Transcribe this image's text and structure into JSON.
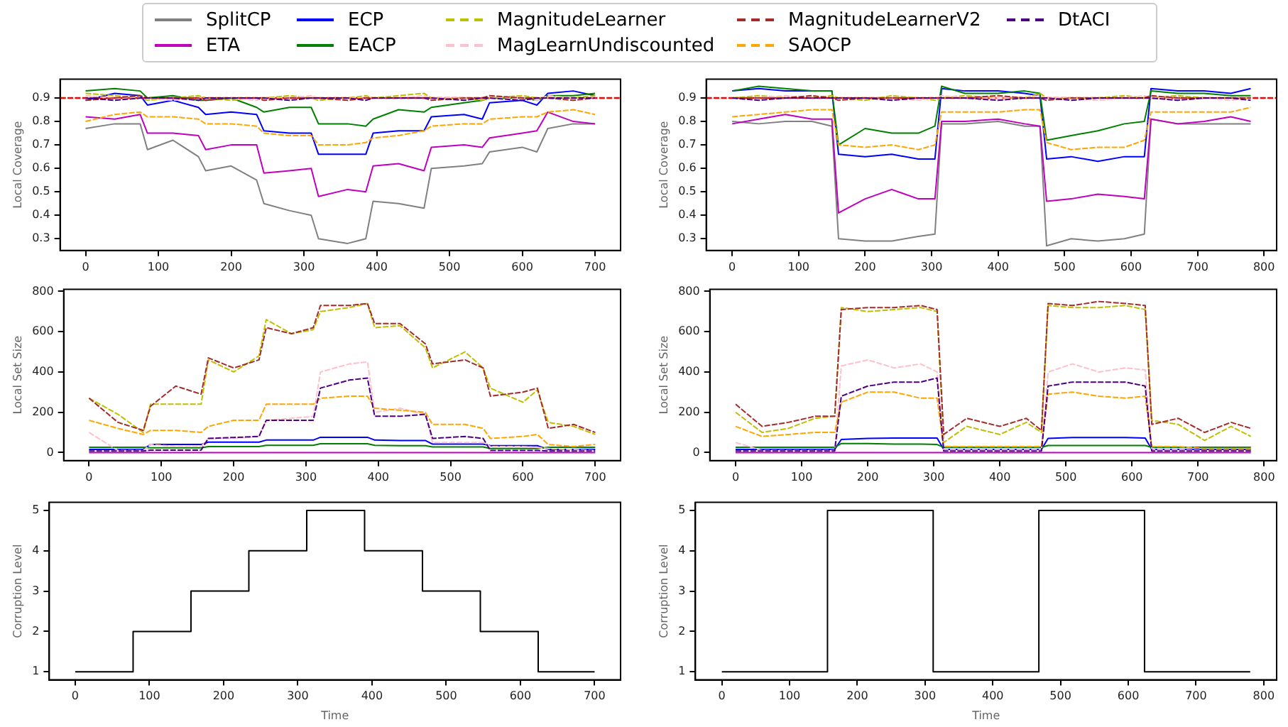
{
  "chart_data": [
    {
      "type": "line",
      "ylabel": "Local Coverage",
      "legend": "top",
      "xlim": [
        -35,
        735
      ],
      "xticks": [
        0,
        100,
        200,
        300,
        400,
        500,
        600,
        700
      ],
      "ylim": [
        0.25,
        0.98
      ],
      "yticks": [
        0.3,
        0.4,
        0.5,
        0.6,
        0.7,
        0.8,
        0.9
      ],
      "x": [
        0,
        40,
        75,
        85,
        120,
        155,
        165,
        200,
        235,
        245,
        280,
        310,
        320,
        360,
        385,
        395,
        430,
        465,
        475,
        520,
        545,
        555,
        600,
        620,
        635,
        670,
        700
      ],
      "ref_lines": [
        {
          "axis": "y",
          "value": 0.9,
          "color": "#ff0000",
          "line_style": "dashed"
        }
      ],
      "series": [
        {
          "name": "SplitCP",
          "color": "#808080",
          "values": [
            0.77,
            0.79,
            0.79,
            0.68,
            0.72,
            0.65,
            0.59,
            0.61,
            0.55,
            0.45,
            0.42,
            0.4,
            0.3,
            0.28,
            0.3,
            0.46,
            0.45,
            0.43,
            0.6,
            0.61,
            0.62,
            0.67,
            0.69,
            0.67,
            0.77,
            0.79,
            0.79
          ]
        },
        {
          "name": "ETA",
          "color": "#bf00bf",
          "values": [
            0.82,
            0.81,
            0.83,
            0.75,
            0.75,
            0.74,
            0.68,
            0.7,
            0.7,
            0.58,
            0.59,
            0.6,
            0.48,
            0.51,
            0.5,
            0.61,
            0.62,
            0.59,
            0.69,
            0.7,
            0.69,
            0.73,
            0.75,
            0.76,
            0.84,
            0.8,
            0.79
          ]
        },
        {
          "name": "ECP",
          "color": "#0000ff",
          "values": [
            0.89,
            0.92,
            0.91,
            0.87,
            0.89,
            0.86,
            0.83,
            0.84,
            0.83,
            0.76,
            0.75,
            0.75,
            0.66,
            0.66,
            0.66,
            0.75,
            0.76,
            0.76,
            0.82,
            0.83,
            0.81,
            0.88,
            0.89,
            0.87,
            0.92,
            0.93,
            0.91
          ]
        },
        {
          "name": "EACP",
          "color": "#008000",
          "values": [
            0.93,
            0.94,
            0.93,
            0.9,
            0.91,
            0.89,
            0.89,
            0.9,
            0.86,
            0.84,
            0.86,
            0.86,
            0.79,
            0.79,
            0.78,
            0.81,
            0.85,
            0.84,
            0.86,
            0.88,
            0.89,
            0.9,
            0.9,
            0.89,
            0.91,
            0.91,
            0.92
          ]
        },
        {
          "name": "MagnitudeLearner",
          "color": "#bfbf00",
          "line_style": "dashed",
          "values": [
            0.92,
            0.91,
            0.9,
            0.89,
            0.9,
            0.91,
            0.9,
            0.89,
            0.9,
            0.9,
            0.91,
            0.9,
            0.89,
            0.9,
            0.91,
            0.9,
            0.91,
            0.92,
            0.9,
            0.9,
            0.89,
            0.9,
            0.91,
            0.9,
            0.9,
            0.9,
            0.91
          ]
        },
        {
          "name": "MagLearnUndiscounted",
          "color": "#ffc0cb",
          "line_style": "dashed",
          "values": [
            0.91,
            0.9,
            0.9,
            0.9,
            0.89,
            0.9,
            0.9,
            0.9,
            0.89,
            0.9,
            0.9,
            0.91,
            0.9,
            0.9,
            0.9,
            0.9,
            0.9,
            0.91,
            0.9,
            0.9,
            0.9,
            0.9,
            0.9,
            0.89,
            0.91,
            0.9,
            0.9
          ]
        },
        {
          "name": "MagnitudeLearnerV2",
          "color": "#a52a2a",
          "line_style": "dashed",
          "values": [
            0.89,
            0.9,
            0.91,
            0.9,
            0.9,
            0.9,
            0.89,
            0.9,
            0.9,
            0.89,
            0.9,
            0.9,
            0.9,
            0.89,
            0.9,
            0.9,
            0.9,
            0.9,
            0.89,
            0.9,
            0.9,
            0.91,
            0.9,
            0.9,
            0.9,
            0.89,
            0.9
          ]
        },
        {
          "name": "SAOCP",
          "color": "#ffa500",
          "line_style": "dashed",
          "values": [
            0.8,
            0.83,
            0.84,
            0.82,
            0.82,
            0.81,
            0.79,
            0.79,
            0.78,
            0.75,
            0.74,
            0.74,
            0.7,
            0.7,
            0.71,
            0.73,
            0.74,
            0.76,
            0.78,
            0.79,
            0.79,
            0.81,
            0.82,
            0.82,
            0.84,
            0.85,
            0.83
          ]
        },
        {
          "name": "DtACI",
          "color": "#4b0082",
          "line_style": "dashed",
          "values": [
            0.9,
            0.89,
            0.9,
            0.9,
            0.9,
            0.89,
            0.9,
            0.9,
            0.9,
            0.9,
            0.89,
            0.9,
            0.9,
            0.9,
            0.89,
            0.9,
            0.9,
            0.9,
            0.9,
            0.89,
            0.9,
            0.9,
            0.89,
            0.9,
            0.9,
            0.9,
            0.9
          ]
        }
      ]
    },
    {
      "type": "line",
      "ylabel": "Local Coverage",
      "xlim": [
        -39,
        819
      ],
      "xticks": [
        0,
        100,
        200,
        300,
        400,
        500,
        600,
        700,
        800
      ],
      "ylim": [
        0.25,
        0.98
      ],
      "yticks": [
        0.3,
        0.4,
        0.5,
        0.6,
        0.7,
        0.8,
        0.9
      ],
      "x": [
        0,
        40,
        80,
        120,
        150,
        160,
        200,
        240,
        280,
        305,
        315,
        350,
        400,
        440,
        463,
        473,
        510,
        550,
        590,
        620,
        630,
        670,
        710,
        750,
        780
      ],
      "ref_lines": [
        {
          "axis": "y",
          "value": 0.9,
          "color": "#ff0000",
          "line_style": "dashed"
        }
      ],
      "series": [
        {
          "name": "SplitCP",
          "color": "#808080",
          "values": [
            0.8,
            0.79,
            0.8,
            0.8,
            0.78,
            0.3,
            0.29,
            0.29,
            0.31,
            0.32,
            0.79,
            0.79,
            0.8,
            0.78,
            0.78,
            0.27,
            0.3,
            0.29,
            0.3,
            0.32,
            0.81,
            0.79,
            0.79,
            0.79,
            0.79
          ]
        },
        {
          "name": "ETA",
          "color": "#bf00bf",
          "values": [
            0.79,
            0.81,
            0.83,
            0.81,
            0.81,
            0.41,
            0.47,
            0.51,
            0.47,
            0.47,
            0.8,
            0.8,
            0.81,
            0.79,
            0.78,
            0.46,
            0.47,
            0.49,
            0.48,
            0.47,
            0.81,
            0.79,
            0.8,
            0.82,
            0.8
          ]
        },
        {
          "name": "ECP",
          "color": "#0000ff",
          "values": [
            0.93,
            0.94,
            0.93,
            0.93,
            0.93,
            0.66,
            0.65,
            0.66,
            0.64,
            0.64,
            0.94,
            0.93,
            0.93,
            0.92,
            0.91,
            0.64,
            0.65,
            0.63,
            0.65,
            0.65,
            0.94,
            0.93,
            0.93,
            0.92,
            0.94
          ]
        },
        {
          "name": "EACP",
          "color": "#008000",
          "values": [
            0.93,
            0.95,
            0.94,
            0.93,
            0.93,
            0.7,
            0.77,
            0.75,
            0.75,
            0.78,
            0.95,
            0.92,
            0.92,
            0.93,
            0.92,
            0.72,
            0.74,
            0.76,
            0.79,
            0.8,
            0.93,
            0.92,
            0.92,
            0.91,
            0.91
          ]
        },
        {
          "name": "MagnitudeLearner",
          "color": "#bfbf00",
          "line_style": "dashed",
          "values": [
            0.9,
            0.91,
            0.9,
            0.9,
            0.91,
            0.9,
            0.89,
            0.91,
            0.9,
            0.89,
            0.9,
            0.91,
            0.9,
            0.9,
            0.92,
            0.9,
            0.9,
            0.9,
            0.91,
            0.9,
            0.9,
            0.91,
            0.9,
            0.9,
            0.9
          ]
        },
        {
          "name": "MagLearnUndiscounted",
          "color": "#ffc0cb",
          "line_style": "dashed",
          "values": [
            0.9,
            0.9,
            0.91,
            0.9,
            0.9,
            0.9,
            0.9,
            0.9,
            0.89,
            0.9,
            0.91,
            0.9,
            0.9,
            0.9,
            0.91,
            0.9,
            0.9,
            0.89,
            0.9,
            0.91,
            0.9,
            0.9,
            0.9,
            0.89,
            0.9
          ]
        },
        {
          "name": "MagnitudeLearnerV2",
          "color": "#a52a2a",
          "line_style": "dashed",
          "values": [
            0.9,
            0.9,
            0.9,
            0.91,
            0.9,
            0.89,
            0.9,
            0.9,
            0.9,
            0.9,
            0.9,
            0.9,
            0.91,
            0.9,
            0.9,
            0.89,
            0.9,
            0.9,
            0.9,
            0.9,
            0.91,
            0.9,
            0.9,
            0.9,
            0.9
          ]
        },
        {
          "name": "SAOCP",
          "color": "#ffa500",
          "line_style": "dashed",
          "values": [
            0.82,
            0.83,
            0.84,
            0.85,
            0.85,
            0.7,
            0.69,
            0.7,
            0.68,
            0.7,
            0.84,
            0.84,
            0.84,
            0.85,
            0.85,
            0.71,
            0.68,
            0.69,
            0.69,
            0.72,
            0.84,
            0.84,
            0.84,
            0.84,
            0.86
          ]
        },
        {
          "name": "DtACI",
          "color": "#4b0082",
          "line_style": "dashed",
          "values": [
            0.9,
            0.89,
            0.9,
            0.9,
            0.9,
            0.9,
            0.9,
            0.89,
            0.9,
            0.9,
            0.9,
            0.9,
            0.89,
            0.9,
            0.9,
            0.9,
            0.89,
            0.9,
            0.9,
            0.9,
            0.9,
            0.89,
            0.9,
            0.9,
            0.89
          ]
        }
      ]
    },
    {
      "type": "line",
      "ylabel": "Local Set Size",
      "xlim": [
        -35,
        735
      ],
      "xticks": [
        0,
        100,
        200,
        300,
        400,
        500,
        600,
        700
      ],
      "ylim": [
        -40,
        810
      ],
      "yticks": [
        0,
        200,
        400,
        600,
        800
      ],
      "x": [
        0,
        40,
        75,
        85,
        120,
        155,
        165,
        200,
        235,
        245,
        280,
        310,
        320,
        360,
        385,
        395,
        430,
        465,
        475,
        520,
        545,
        555,
        600,
        620,
        635,
        670,
        700
      ],
      "series": [
        {
          "name": "SplitCP",
          "color": "#808080",
          "values": [
            null,
            null,
            null,
            null,
            null,
            null,
            null,
            null,
            null,
            null,
            null,
            null,
            null,
            null,
            null,
            null,
            null,
            null,
            null,
            null,
            null,
            null,
            null,
            null,
            null,
            null,
            null
          ]
        },
        {
          "name": "ETA",
          "color": "#bf00bf",
          "values": [
            0,
            0,
            0,
            0,
            0,
            0,
            0,
            0,
            0,
            0,
            0,
            0,
            0,
            0,
            0,
            0,
            0,
            0,
            0,
            0,
            0,
            0,
            0,
            0,
            0,
            0,
            0
          ]
        },
        {
          "name": "ECP",
          "color": "#0000ff",
          "values": [
            16,
            16,
            16,
            40,
            40,
            40,
            52,
            52,
            52,
            62,
            62,
            62,
            76,
            76,
            76,
            62,
            60,
            60,
            42,
            42,
            42,
            34,
            34,
            34,
            16,
            16,
            16
          ]
        },
        {
          "name": "EACP",
          "color": "#008000",
          "values": [
            26,
            26,
            26,
            24,
            24,
            24,
            30,
            30,
            30,
            36,
            36,
            36,
            44,
            44,
            44,
            36,
            34,
            34,
            28,
            28,
            28,
            20,
            20,
            20,
            26,
            26,
            26
          ]
        },
        {
          "name": "MagnitudeLearner",
          "color": "#bfbf00",
          "line_style": "dashed",
          "values": [
            270,
            190,
            100,
            240,
            240,
            240,
            460,
            400,
            480,
            660,
            590,
            610,
            700,
            720,
            740,
            620,
            630,
            520,
            420,
            500,
            420,
            320,
            250,
            310,
            150,
            130,
            90
          ]
        },
        {
          "name": "MagLearnUndiscounted",
          "color": "#ffc0cb",
          "line_style": "dashed",
          "values": [
            100,
            10,
            10,
            40,
            30,
            30,
            70,
            70,
            80,
            160,
            170,
            180,
            400,
            440,
            450,
            200,
            220,
            190,
            50,
            50,
            50,
            30,
            30,
            25,
            20,
            15,
            10
          ]
        },
        {
          "name": "MagnitudeLearnerV2",
          "color": "#a52a2a",
          "line_style": "dashed",
          "values": [
            270,
            150,
            110,
            230,
            330,
            290,
            470,
            420,
            460,
            620,
            590,
            620,
            730,
            730,
            740,
            640,
            640,
            540,
            440,
            460,
            420,
            280,
            300,
            320,
            120,
            140,
            100
          ]
        },
        {
          "name": "SAOCP",
          "color": "#ffa500",
          "line_style": "dashed",
          "values": [
            160,
            120,
            90,
            110,
            110,
            100,
            130,
            160,
            160,
            240,
            240,
            240,
            270,
            280,
            280,
            220,
            210,
            200,
            140,
            140,
            120,
            70,
            80,
            90,
            40,
            30,
            40
          ]
        },
        {
          "name": "DtACI",
          "color": "#4b0082",
          "line_style": "dashed",
          "values": [
            8,
            8,
            8,
            12,
            12,
            12,
            70,
            75,
            80,
            160,
            160,
            160,
            320,
            360,
            370,
            180,
            180,
            190,
            70,
            80,
            70,
            10,
            10,
            10,
            8,
            8,
            8
          ]
        }
      ]
    },
    {
      "type": "line",
      "ylabel": "Local Set Size",
      "xlim": [
        -39,
        819
      ],
      "xticks": [
        0,
        100,
        200,
        300,
        400,
        500,
        600,
        700,
        800
      ],
      "ylim": [
        -40,
        810
      ],
      "yticks": [
        0,
        200,
        400,
        600,
        800
      ],
      "x": [
        0,
        40,
        80,
        120,
        150,
        160,
        200,
        240,
        280,
        305,
        315,
        350,
        400,
        440,
        463,
        473,
        510,
        550,
        590,
        620,
        630,
        670,
        710,
        750,
        780
      ],
      "series": [
        {
          "name": "SplitCP",
          "color": "#808080",
          "values": [
            null,
            null,
            null,
            null,
            null,
            null,
            null,
            null,
            null,
            null,
            null,
            null,
            null,
            null,
            null,
            null,
            null,
            null,
            null,
            null,
            null,
            null,
            null,
            null,
            null
          ]
        },
        {
          "name": "ETA",
          "color": "#bf00bf",
          "values": [
            0,
            0,
            0,
            0,
            0,
            0,
            0,
            0,
            0,
            0,
            0,
            0,
            0,
            0,
            0,
            0,
            0,
            0,
            0,
            0,
            0,
            0,
            0,
            0,
            0
          ]
        },
        {
          "name": "ECP",
          "color": "#0000ff",
          "values": [
            16,
            16,
            16,
            16,
            16,
            65,
            70,
            72,
            72,
            72,
            16,
            16,
            16,
            16,
            16,
            70,
            75,
            75,
            75,
            72,
            16,
            16,
            16,
            16,
            16
          ]
        },
        {
          "name": "EACP",
          "color": "#008000",
          "values": [
            26,
            26,
            26,
            26,
            26,
            45,
            45,
            42,
            42,
            40,
            26,
            26,
            26,
            26,
            26,
            35,
            35,
            35,
            35,
            35,
            26,
            26,
            26,
            26,
            26
          ]
        },
        {
          "name": "MagnitudeLearner",
          "color": "#bfbf00",
          "line_style": "dashed",
          "values": [
            200,
            100,
            120,
            170,
            180,
            720,
            700,
            710,
            720,
            700,
            50,
            130,
            90,
            150,
            100,
            730,
            720,
            720,
            730,
            710,
            160,
            140,
            60,
            130,
            80
          ]
        },
        {
          "name": "MagLearnUndiscounted",
          "color": "#ffc0cb",
          "line_style": "dashed",
          "values": [
            50,
            10,
            10,
            10,
            10,
            430,
            460,
            420,
            440,
            400,
            15,
            15,
            15,
            15,
            15,
            400,
            440,
            400,
            420,
            410,
            15,
            15,
            10,
            10,
            10
          ]
        },
        {
          "name": "MagnitudeLearnerV2",
          "color": "#a52a2a",
          "line_style": "dashed",
          "values": [
            240,
            130,
            150,
            180,
            180,
            710,
            720,
            720,
            730,
            710,
            90,
            170,
            130,
            170,
            110,
            740,
            730,
            750,
            740,
            730,
            140,
            170,
            100,
            150,
            120
          ]
        },
        {
          "name": "SAOCP",
          "color": "#ffa500",
          "line_style": "dashed",
          "values": [
            130,
            80,
            90,
            100,
            100,
            250,
            300,
            300,
            270,
            270,
            30,
            30,
            30,
            30,
            30,
            290,
            300,
            280,
            270,
            280,
            30,
            30,
            20,
            20,
            20
          ]
        },
        {
          "name": "DtACI",
          "color": "#4b0082",
          "line_style": "dashed",
          "values": [
            8,
            8,
            8,
            8,
            8,
            280,
            330,
            350,
            350,
            370,
            8,
            8,
            8,
            8,
            8,
            330,
            350,
            350,
            350,
            330,
            8,
            8,
            8,
            8,
            8
          ]
        }
      ]
    },
    {
      "type": "step",
      "xlabel": "Time",
      "ylabel": "Corruption Level",
      "xlim": [
        -35,
        735
      ],
      "xticks": [
        0,
        100,
        200,
        300,
        400,
        500,
        600,
        700
      ],
      "ylim": [
        0.8,
        5.2
      ],
      "yticks": [
        1,
        2,
        3,
        4,
        5
      ],
      "x": [
        0,
        78,
        156,
        234,
        312,
        390,
        468,
        546,
        624,
        700
      ],
      "series": [
        {
          "color": "#000000",
          "values": [
            1,
            2,
            3,
            4,
            5,
            4,
            3,
            2,
            1,
            1
          ]
        }
      ]
    },
    {
      "type": "step",
      "xlabel": "Time",
      "ylabel": "Corruption Level",
      "xlim": [
        -39,
        819
      ],
      "xticks": [
        0,
        100,
        200,
        300,
        400,
        500,
        600,
        700,
        800
      ],
      "ylim": [
        0.8,
        5.2
      ],
      "yticks": [
        1,
        2,
        3,
        4,
        5
      ],
      "x": [
        0,
        156,
        312,
        468,
        624,
        780
      ],
      "series": [
        {
          "color": "#000000",
          "values": [
            1,
            5,
            1,
            5,
            1,
            1
          ]
        }
      ]
    }
  ]
}
